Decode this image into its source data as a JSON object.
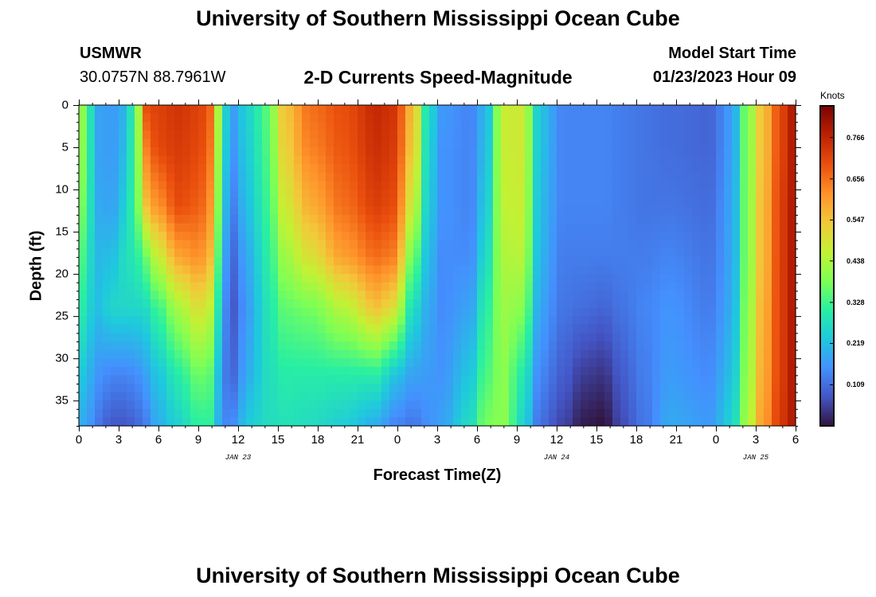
{
  "page": {
    "title": "University of Southern Mississippi Ocean Cube",
    "station": "USMWR",
    "coords": "30.0757N  88.7961W",
    "subtitle": "2-D Currents Speed-Magnitude",
    "start_label": "Model Start Time",
    "start_value": "01/23/2023 Hour 09",
    "footer_title": "University of Southern Mississippi Ocean Cube"
  },
  "chart_data": {
    "type": "heatmap",
    "title": "2-D Currents Speed-Magnitude",
    "xlabel": "Forecast Time(Z)",
    "ylabel": "Depth (ft)",
    "colorbar_label": "Knots",
    "x_ticks": [
      "0",
      "3",
      "6",
      "9",
      "12",
      "15",
      "18",
      "21",
      "0",
      "3",
      "6",
      "9",
      "12",
      "15",
      "18",
      "21",
      "0",
      "3",
      "6"
    ],
    "date_labels": [
      {
        "text": "JAN 23",
        "at_hour": 12
      },
      {
        "text": "JAN 24",
        "at_hour": 36
      },
      {
        "text": "JAN 25",
        "at_hour": 51
      }
    ],
    "xlim_hours": [
      0,
      54
    ],
    "y_ticks": [
      "0",
      "5",
      "10",
      "15",
      "20",
      "25",
      "30",
      "35"
    ],
    "ylim": [
      0,
      38
    ],
    "colorbar_ticks": [
      "0.109",
      "0.219",
      "0.328",
      "0.438",
      "0.547",
      "0.656",
      "0.766"
    ],
    "colorbar_range": [
      0.0,
      0.85
    ],
    "colormap": [
      "#30123b",
      "#4454c4",
      "#4490fe",
      "#1fc8de",
      "#29efa2",
      "#7eff55",
      "#c3f134",
      "#f2c93a",
      "#fe922a",
      "#ea4f0d",
      "#be2102",
      "#7a0403"
    ],
    "profiles": [
      {
        "t": 0.0,
        "speed": [
          0.47,
          0.46,
          0.43,
          0.38,
          0.33,
          0.25,
          0.2
        ]
      },
      {
        "t": 0.7,
        "speed": [
          0.3,
          0.3,
          0.29,
          0.27,
          0.25,
          0.2,
          0.17
        ]
      },
      {
        "t": 1.5,
        "speed": [
          0.18,
          0.18,
          0.19,
          0.21,
          0.22,
          0.16,
          0.12
        ]
      },
      {
        "t": 2.5,
        "speed": [
          0.17,
          0.17,
          0.18,
          0.22,
          0.26,
          0.14,
          0.08
        ]
      },
      {
        "t": 3.5,
        "speed": [
          0.2,
          0.21,
          0.24,
          0.27,
          0.26,
          0.14,
          0.08
        ]
      },
      {
        "t": 4.3,
        "speed": [
          0.36,
          0.36,
          0.35,
          0.3,
          0.26,
          0.15,
          0.1
        ]
      },
      {
        "t": 5.0,
        "speed": [
          0.7,
          0.64,
          0.55,
          0.37,
          0.27,
          0.18,
          0.13
        ]
      },
      {
        "t": 6.0,
        "speed": [
          0.72,
          0.71,
          0.62,
          0.47,
          0.33,
          0.23,
          0.2
        ]
      },
      {
        "t": 7.5,
        "speed": [
          0.74,
          0.73,
          0.7,
          0.59,
          0.43,
          0.3,
          0.25
        ]
      },
      {
        "t": 9.0,
        "speed": [
          0.72,
          0.71,
          0.68,
          0.62,
          0.5,
          0.37,
          0.31
        ]
      },
      {
        "t": 10.2,
        "speed": [
          0.66,
          0.64,
          0.6,
          0.55,
          0.45,
          0.35,
          0.31
        ]
      },
      {
        "t": 10.7,
        "speed": [
          0.32,
          0.31,
          0.28,
          0.24,
          0.2,
          0.15,
          0.14
        ]
      },
      {
        "t": 11.5,
        "speed": [
          0.17,
          0.16,
          0.13,
          0.1,
          0.08,
          0.1,
          0.15
        ]
      },
      {
        "t": 12.8,
        "speed": [
          0.26,
          0.25,
          0.23,
          0.2,
          0.18,
          0.2,
          0.24
        ]
      },
      {
        "t": 14.2,
        "speed": [
          0.35,
          0.34,
          0.32,
          0.3,
          0.28,
          0.27,
          0.27
        ]
      },
      {
        "t": 15.5,
        "speed": [
          0.55,
          0.53,
          0.48,
          0.42,
          0.36,
          0.3,
          0.28
        ]
      },
      {
        "t": 17.5,
        "speed": [
          0.66,
          0.64,
          0.58,
          0.5,
          0.38,
          0.3,
          0.27
        ]
      },
      {
        "t": 20.0,
        "speed": [
          0.7,
          0.69,
          0.66,
          0.6,
          0.45,
          0.3,
          0.24
        ]
      },
      {
        "t": 22.5,
        "speed": [
          0.76,
          0.75,
          0.72,
          0.66,
          0.55,
          0.3,
          0.19
        ]
      },
      {
        "t": 23.7,
        "speed": [
          0.74,
          0.73,
          0.7,
          0.64,
          0.5,
          0.23,
          0.14
        ]
      },
      {
        "t": 25.2,
        "speed": [
          0.56,
          0.54,
          0.47,
          0.37,
          0.27,
          0.18,
          0.12
        ]
      },
      {
        "t": 26.2,
        "speed": [
          0.29,
          0.28,
          0.26,
          0.23,
          0.2,
          0.17,
          0.15
        ]
      },
      {
        "t": 27.3,
        "speed": [
          0.17,
          0.16,
          0.16,
          0.15,
          0.15,
          0.16,
          0.18
        ]
      },
      {
        "t": 29.5,
        "speed": [
          0.14,
          0.14,
          0.14,
          0.15,
          0.18,
          0.23,
          0.27
        ]
      },
      {
        "t": 30.6,
        "speed": [
          0.2,
          0.21,
          0.23,
          0.26,
          0.3,
          0.34,
          0.38
        ]
      },
      {
        "t": 32.0,
        "speed": [
          0.47,
          0.47,
          0.46,
          0.44,
          0.42,
          0.4,
          0.4
        ]
      },
      {
        "t": 33.4,
        "speed": [
          0.48,
          0.48,
          0.47,
          0.45,
          0.4,
          0.3,
          0.26
        ]
      },
      {
        "t": 34.8,
        "speed": [
          0.22,
          0.22,
          0.21,
          0.2,
          0.18,
          0.14,
          0.11
        ]
      },
      {
        "t": 36.5,
        "speed": [
          0.14,
          0.14,
          0.14,
          0.13,
          0.12,
          0.09,
          0.06
        ]
      },
      {
        "t": 38.0,
        "speed": [
          0.14,
          0.14,
          0.14,
          0.13,
          0.11,
          0.05,
          0.01
        ]
      },
      {
        "t": 39.5,
        "speed": [
          0.14,
          0.14,
          0.14,
          0.13,
          0.1,
          0.04,
          0.0
        ]
      },
      {
        "t": 41.0,
        "speed": [
          0.13,
          0.13,
          0.13,
          0.13,
          0.12,
          0.09,
          0.07
        ]
      },
      {
        "t": 42.5,
        "speed": [
          0.12,
          0.12,
          0.12,
          0.13,
          0.14,
          0.13,
          0.12
        ]
      },
      {
        "t": 44.5,
        "speed": [
          0.11,
          0.11,
          0.12,
          0.14,
          0.16,
          0.17,
          0.19
        ]
      },
      {
        "t": 47.5,
        "speed": [
          0.1,
          0.1,
          0.11,
          0.12,
          0.13,
          0.15,
          0.17
        ]
      },
      {
        "t": 49.2,
        "speed": [
          0.17,
          0.17,
          0.18,
          0.18,
          0.19,
          0.22,
          0.25
        ]
      },
      {
        "t": 50.3,
        "speed": [
          0.38,
          0.38,
          0.38,
          0.38,
          0.39,
          0.4,
          0.42
        ]
      },
      {
        "t": 51.5,
        "speed": [
          0.55,
          0.55,
          0.56,
          0.56,
          0.57,
          0.58,
          0.6
        ]
      },
      {
        "t": 53.0,
        "speed": [
          0.72,
          0.72,
          0.73,
          0.73,
          0.73,
          0.73,
          0.74
        ]
      },
      {
        "t": 54.0,
        "speed": [
          0.8,
          0.8,
          0.8,
          0.8,
          0.8,
          0.8,
          0.8
        ]
      }
    ],
    "profile_depths": [
      0,
      5,
      12,
      18,
      24,
      32,
      38
    ]
  }
}
